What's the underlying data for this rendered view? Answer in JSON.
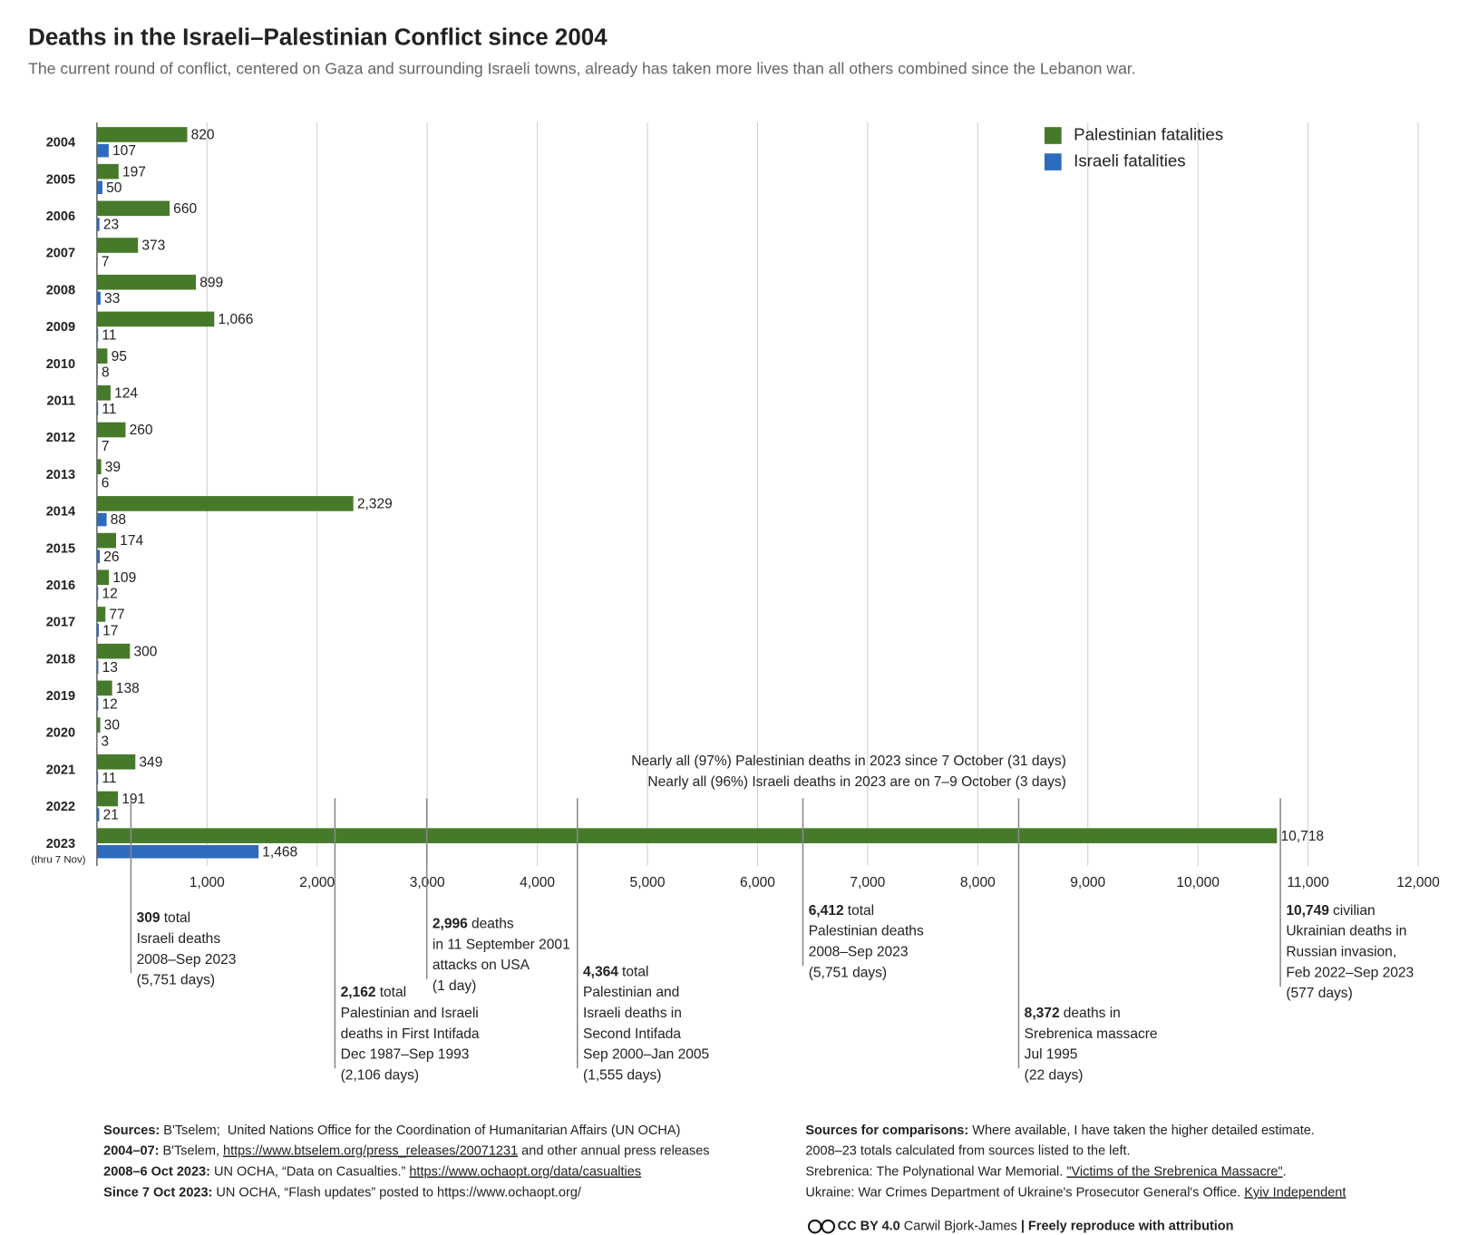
{
  "chart_data": {
    "type": "bar",
    "orientation": "horizontal",
    "title": "Deaths in the Israeli–Palestinian Conflict since 2004",
    "subtitle": "The current round of conflict, centered on Gaza and surrounding Israeli towns, already has taken more lives than all others combined since the Lebanon war.",
    "categories": [
      "2004",
      "2005",
      "2006",
      "2007",
      "2008",
      "2009",
      "2010",
      "2011",
      "2012",
      "2013",
      "2014",
      "2015",
      "2016",
      "2017",
      "2018",
      "2019",
      "2020",
      "2021",
      "2022",
      "2023"
    ],
    "last_category_note": "(thru 7 Nov)",
    "series": [
      {
        "name": "Palestinian fatalities",
        "color": "#467a2b",
        "values": [
          820,
          197,
          660,
          373,
          899,
          1066,
          95,
          124,
          260,
          39,
          2329,
          174,
          109,
          77,
          300,
          138,
          30,
          349,
          191,
          10718
        ],
        "value_labels": [
          "820",
          "197",
          "660",
          "373",
          "899",
          "1,066",
          "95",
          "124",
          "260",
          "39",
          "2,329",
          "174",
          "109",
          "77",
          "300",
          "138",
          "30",
          "349",
          "191",
          "10,718"
        ]
      },
      {
        "name": "Israeli fatalities",
        "color": "#2e6bbd",
        "values": [
          107,
          50,
          23,
          7,
          33,
          11,
          8,
          11,
          7,
          6,
          88,
          26,
          12,
          17,
          13,
          12,
          3,
          11,
          21,
          1468
        ],
        "value_labels": [
          "107",
          "50",
          "23",
          "7",
          "33",
          "11",
          "8",
          "11",
          "7",
          "6",
          "88",
          "26",
          "12",
          "17",
          "13",
          "12",
          "3",
          "11",
          "21",
          "1,468"
        ]
      }
    ],
    "xlim": [
      0,
      12000
    ],
    "xticks": [
      {
        "value": 1000,
        "label": "1,000"
      },
      {
        "value": 2000,
        "label": "2,000"
      },
      {
        "value": 3000,
        "label": "3,000"
      },
      {
        "value": 4000,
        "label": "4,000"
      },
      {
        "value": 5000,
        "label": "5,000"
      },
      {
        "value": 6000,
        "label": "6,000"
      },
      {
        "value": 7000,
        "label": "7,000"
      },
      {
        "value": 8000,
        "label": "8,000"
      },
      {
        "value": 9000,
        "label": "9,000"
      },
      {
        "value": 10000,
        "label": "10,000"
      },
      {
        "value": 11000,
        "label": "11,000"
      },
      {
        "value": 12000,
        "label": "12,000"
      }
    ],
    "grid": true,
    "legend": "top-right",
    "notes": [
      "Nearly all (97%) Palestinian deaths in 2023 since 7 October (31 days)",
      "Nearly all (96%) Israeli deaths in 2023 are on 7–9 October (3 days)"
    ],
    "comparisons": [
      {
        "value": 309,
        "value_label": "309",
        "lines": [
          "total",
          "Israeli deaths",
          "2008–Sep 2023",
          "(5,751 days)"
        ]
      },
      {
        "value": 2162,
        "value_label": "2,162",
        "lines": [
          "total",
          "Palestinian and Israeli",
          "deaths in First Intifada",
          "Dec 1987–Sep 1993",
          "(2,106 days)"
        ]
      },
      {
        "value": 2996,
        "value_label": "2,996",
        "lines": [
          "deaths",
          "in 11 September 2001",
          "attacks on USA",
          "(1 day)"
        ]
      },
      {
        "value": 4364,
        "value_label": "4,364",
        "lines": [
          "total",
          "Palestinian and",
          "Israeli deaths in",
          "Second Intifada",
          "Sep 2000–Jan 2005",
          "(1,555 days)"
        ]
      },
      {
        "value": 6412,
        "value_label": "6,412",
        "lines": [
          "total",
          "Palestinian deaths",
          "2008–Sep 2023",
          "(5,751 days)"
        ]
      },
      {
        "value": 8372,
        "value_label": "8,372",
        "lines": [
          "deaths in",
          "Srebrenica massacre",
          "Jul 1995",
          "(22 days)"
        ]
      },
      {
        "value": 10749,
        "value_label": "10,749",
        "lines": [
          "civilian",
          "Ukrainian deaths in",
          "Russian invasion,",
          "Feb 2022–Sep 2023",
          "(577 days)"
        ]
      }
    ]
  },
  "footer": {
    "sources": [
      [
        {
          "text": "Sources:",
          "style": "bold"
        },
        {
          "text": " B'Tselem;  United Nations Office for the Coordination of Humanitarian Affairs (UN OCHA)",
          "style": "plain"
        }
      ],
      [
        {
          "text": "2004–07:",
          "style": "bold"
        },
        {
          "text": " B'Tselem, ",
          "style": "plain"
        },
        {
          "text": "https://www.btselem.org/press_releases/20071231",
          "style": "link"
        },
        {
          "text": " and other annual press releases",
          "style": "plain"
        }
      ],
      [
        {
          "text": "2008–6 Oct 2023:",
          "style": "bold"
        },
        {
          "text": " UN OCHA, “Data on Casualties.” ",
          "style": "plain"
        },
        {
          "text": "https://www.ochaopt.org/data/casualties",
          "style": "link"
        }
      ],
      [
        {
          "text": "Since 7 Oct 2023:",
          "style": "bold"
        },
        {
          "text": " UN OCHA, “Flash updates” posted to https://www.ochaopt.org/",
          "style": "plain"
        }
      ]
    ],
    "comparison_sources": [
      [
        {
          "text": "Sources for comparisons:",
          "style": "bold"
        },
        {
          "text": " Where available, I have taken the higher detailed estimate.",
          "style": "plain"
        }
      ],
      [
        {
          "text": "2008–23 totals calculated from sources listed to the left.",
          "style": "plain"
        }
      ],
      [
        {
          "text": "Srebrenica: The Polynational War Memorial. ",
          "style": "plain"
        },
        {
          "text": "\"Victims of the Srebrenica Massacre\"",
          "style": "link"
        },
        {
          "text": ".",
          "style": "plain"
        }
      ],
      [
        {
          "text": "Ukraine: War Crimes Department of Ukraine's Prosecutor General's Office. ",
          "style": "plain"
        },
        {
          "text": "Kyiv Independent",
          "style": "link"
        }
      ]
    ],
    "credit": [
      {
        "text": "CC BY 4.0",
        "style": "bold"
      },
      {
        "text": " Carwil Bjork-James ",
        "style": "plain"
      },
      {
        "text": "|",
        "style": "bold"
      },
      {
        "text": " Freely reproduce with attribution",
        "style": "bold"
      }
    ]
  }
}
